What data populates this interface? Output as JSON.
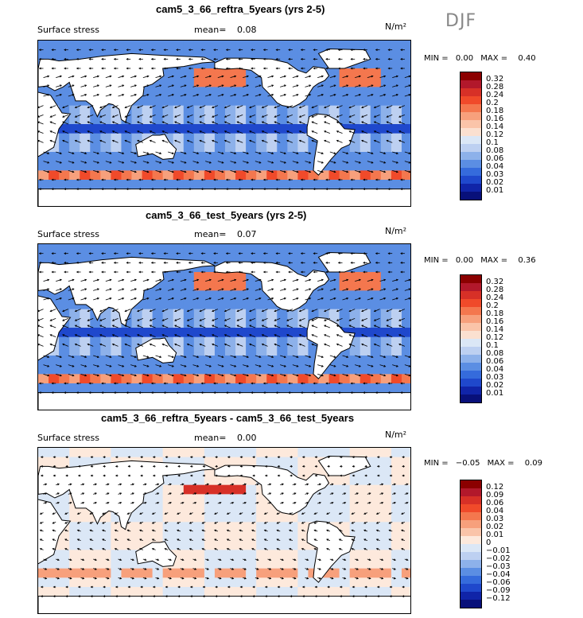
{
  "season": "DJF",
  "panels": [
    {
      "title": "cam5_3_66_reftra_5years (yrs 2-5)",
      "variable": "Surface stress",
      "mean_label": "mean=",
      "mean": "0.08",
      "units": "N/m²",
      "min_label": "MIN =",
      "min": "0.00",
      "max_label": "MAX =",
      "max": "0.40",
      "colorbar_ticks": [
        "0.32",
        "0.28",
        "0.24",
        "0.2",
        "0.18",
        "0.16",
        "0.14",
        "0.12",
        "0.1",
        "0.08",
        "0.06",
        "0.04",
        "0.03",
        "0.02",
        "0.01"
      ],
      "colors": [
        "#8b0000",
        "#b2182b",
        "#d73027",
        "#f04a2a",
        "#f4774e",
        "#f7a07c",
        "#fac4a9",
        "#fbe0d0",
        "#dbe7f6",
        "#bdd0f1",
        "#8db1ea",
        "#5b8ee3",
        "#356bdc",
        "#1f48cc",
        "#1024a8",
        "#08107a"
      ]
    },
    {
      "title": "cam5_3_66_test_5years (yrs 2-5)",
      "variable": "Surface stress",
      "mean_label": "mean=",
      "mean": "0.07",
      "units": "N/m²",
      "min_label": "MIN =",
      "min": "0.00",
      "max_label": "MAX =",
      "max": "0.36",
      "colorbar_ticks": [
        "0.32",
        "0.28",
        "0.24",
        "0.2",
        "0.18",
        "0.16",
        "0.14",
        "0.12",
        "0.1",
        "0.08",
        "0.06",
        "0.04",
        "0.03",
        "0.02",
        "0.01"
      ],
      "colors": [
        "#8b0000",
        "#b2182b",
        "#d73027",
        "#f04a2a",
        "#f4774e",
        "#f7a07c",
        "#fac4a9",
        "#fbe0d0",
        "#dbe7f6",
        "#bdd0f1",
        "#8db1ea",
        "#5b8ee3",
        "#356bdc",
        "#1f48cc",
        "#1024a8",
        "#08107a"
      ]
    },
    {
      "title": "cam5_3_66_reftra_5years - cam5_3_66_test_5years",
      "variable": "Surface stress",
      "mean_label": "mean=",
      "mean": "0.00",
      "units": "N/m²",
      "min_label": "MIN =",
      "min": "−0.05",
      "max_label": "MAX =",
      "max": "0.09",
      "colorbar_ticks": [
        "0.12",
        "0.09",
        "0.06",
        "0.04",
        "0.03",
        "0.02",
        "0.01",
        "0",
        "−0.01",
        "−0.02",
        "−0.03",
        "−0.04",
        "−0.06",
        "−0.09",
        "−0.12"
      ],
      "colors": [
        "#8b0000",
        "#b2182b",
        "#d73027",
        "#f04a2a",
        "#f4774e",
        "#f7a07c",
        "#fac4a9",
        "#fde9dc",
        "#dbe7f6",
        "#bdd0f1",
        "#8db1ea",
        "#5b8ee3",
        "#356bdc",
        "#1f48cc",
        "#1024a8",
        "#08107a"
      ]
    }
  ]
}
